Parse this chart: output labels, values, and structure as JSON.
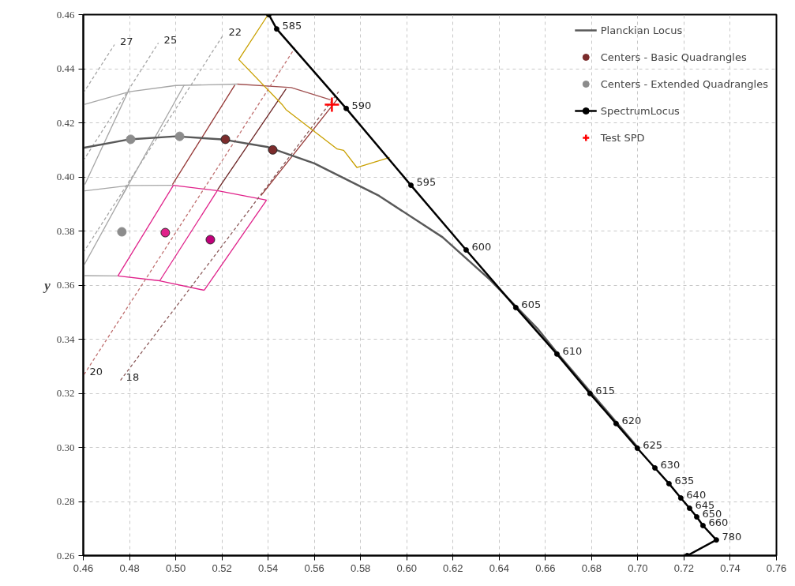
{
  "chart_data": {
    "type": "line",
    "ylabel": "y",
    "xlim": [
      0.46,
      0.76
    ],
    "ylim": [
      0.26,
      0.46
    ],
    "xticks": [
      {
        "value": 0.46,
        "label": "0.46"
      },
      {
        "value": 0.48,
        "label": "0.48"
      },
      {
        "value": 0.5,
        "label": "0.50"
      },
      {
        "value": 0.52,
        "label": "0.52"
      },
      {
        "value": 0.54,
        "label": "0.54"
      },
      {
        "value": 0.56,
        "label": "0.56"
      },
      {
        "value": 0.58,
        "label": "0.58"
      },
      {
        "value": 0.6,
        "label": "0.60"
      },
      {
        "value": 0.62,
        "label": "0.62"
      },
      {
        "value": 0.64,
        "label": "0.64"
      },
      {
        "value": 0.66,
        "label": "0.66"
      },
      {
        "value": 0.68,
        "label": "0.68"
      },
      {
        "value": 0.7,
        "label": "0.70"
      },
      {
        "value": 0.72,
        "label": "0.72"
      },
      {
        "value": 0.74,
        "label": "0.74"
      },
      {
        "value": 0.76,
        "label": "0.76"
      }
    ],
    "yticks": [
      {
        "value": 0.26,
        "label": "0.26"
      },
      {
        "value": 0.28,
        "label": "0.28"
      },
      {
        "value": 0.3,
        "label": "0.30"
      },
      {
        "value": 0.32,
        "label": "0.32"
      },
      {
        "value": 0.34,
        "label": "0.34"
      },
      {
        "value": 0.36,
        "label": "0.36"
      },
      {
        "value": 0.38,
        "label": "0.38"
      },
      {
        "value": 0.4,
        "label": "0.40"
      },
      {
        "value": 0.42,
        "label": "0.42"
      },
      {
        "value": 0.44,
        "label": "0.44"
      },
      {
        "value": 0.46,
        "label": "0.46"
      }
    ],
    "grid": true,
    "legend": "top right",
    "series": [
      {
        "type": "line",
        "color": "#a6a6a6",
        "x": [
          0.46,
          0.48,
          0.5,
          0.5266
        ],
        "values": [
          0.4267,
          0.4315,
          0.4338,
          0.4343
        ]
      },
      {
        "type": "line",
        "color": "#a05050",
        "x": [
          0.5266,
          0.55,
          0.567
        ],
        "values": [
          0.4343,
          0.433,
          0.4285
        ]
      },
      {
        "type": "line",
        "color": "#a6a6a6",
        "x": [
          0.46,
          0.48,
          0.499
        ],
        "values": [
          0.3948,
          0.3968,
          0.3969
        ]
      },
      {
        "type": "line",
        "color": "#e0218a",
        "x": [
          0.499,
          0.518,
          0.5393
        ],
        "values": [
          0.3969,
          0.3949,
          0.3914
        ]
      },
      {
        "type": "line",
        "color": "#a6a6a6",
        "x": [
          0.46,
          0.475
        ],
        "values": [
          0.3635,
          0.3634
        ]
      },
      {
        "type": "line",
        "color": "#e0218a",
        "x": [
          0.475,
          0.4931,
          0.5123
        ],
        "values": [
          0.3634,
          0.3616,
          0.3581
        ]
      },
      {
        "type": "line",
        "color": "#e0218a",
        "x": [
          0.475,
          0.499
        ],
        "values": [
          0.3634,
          0.3969
        ]
      },
      {
        "type": "line",
        "color": "#e0218a",
        "x": [
          0.4931,
          0.518
        ],
        "values": [
          0.3616,
          0.3949
        ]
      },
      {
        "type": "line",
        "color": "#e0218a",
        "x": [
          0.5123,
          0.5393
        ],
        "values": [
          0.3581,
          0.3914
        ]
      },
      {
        "type": "line",
        "color": "#a6a6a6",
        "x": [
          0.4607,
          0.4798
        ],
        "values": [
          0.3972,
          0.4323
        ]
      },
      {
        "type": "line",
        "color": "#a6a6a6",
        "x": [
          0.4764,
          0.5037
        ],
        "values": [
          0.3923,
          0.434
        ]
      },
      {
        "type": "line",
        "color": "#a6a6a6",
        "x": [
          0.46,
          0.4795
        ],
        "values": [
          0.3669,
          0.3972
        ]
      },
      {
        "type": "line",
        "color": "#953735",
        "x": [
          0.4986,
          0.5256
        ],
        "values": [
          0.3972,
          0.434
        ]
      },
      {
        "type": "line",
        "color": "#6b2424",
        "x": [
          0.5181,
          0.5478
        ],
        "values": [
          0.3952,
          0.4326
        ]
      },
      {
        "type": "line",
        "color": "#953735",
        "x": [
          0.5369,
          0.57
        ],
        "values": [
          0.3931,
          0.4288
        ]
      },
      {
        "type": "line",
        "color": "#a6a6a6",
        "line_style": "dashed",
        "x": [
          0.46,
          0.4735
        ],
        "values": [
          0.431,
          0.4489
        ]
      },
      {
        "type": "line",
        "color": "#a6a6a6",
        "line_style": "dashed",
        "x": [
          0.46,
          0.4925
        ],
        "values": [
          0.406,
          0.4495
        ]
      },
      {
        "type": "line",
        "color": "#a6a6a6",
        "line_style": "dashed",
        "x": [
          0.46,
          0.5205
        ],
        "values": [
          0.372,
          0.4524
        ]
      },
      {
        "type": "line",
        "color": "#c07070",
        "line_style": "dashed",
        "x": [
          0.4603,
          0.5516
        ],
        "values": [
          0.3269,
          0.4477
        ]
      },
      {
        "type": "line",
        "color": "#8b5a5a",
        "line_style": "dashed",
        "x": [
          0.4761,
          0.5705
        ],
        "values": [
          0.3248,
          0.4315
        ]
      },
      {
        "type": "line",
        "color": "#c9a000",
        "x": [
          0.54,
          0.5273,
          0.546,
          0.5477,
          0.5699,
          0.5727,
          0.5784,
          0.5926
        ],
        "values": [
          0.46,
          0.4434,
          0.4268,
          0.4249,
          0.4103,
          0.4098,
          0.4035,
          0.4072
        ]
      },
      {
        "type": "line",
        "name": "Planckian Locus",
        "color": "#595959",
        "x": [
          0.46,
          0.48,
          0.5,
          0.52,
          0.54,
          0.56,
          0.588,
          0.6155,
          0.636,
          0.6565,
          0.665,
          0.68,
          0.7
        ],
        "values": [
          0.4107,
          0.4139,
          0.415,
          0.4139,
          0.411,
          0.405,
          0.393,
          0.3777,
          0.362,
          0.344,
          0.335,
          0.32,
          0.3
        ]
      },
      {
        "type": "scatter",
        "name": "Centers - Basic Quadrangles",
        "color": "#7b2c2c",
        "colors": [
          "#7b2c2c",
          "#7b2c2c",
          "#e0218a",
          "#c0007a"
        ],
        "marker": "circle",
        "x": [
          0.5215,
          0.542,
          0.4955,
          0.515
        ],
        "values": [
          0.4139,
          0.41,
          0.3794,
          0.3768
        ]
      },
      {
        "type": "scatter",
        "name": "Centers - Extended Quadrangles",
        "color": "#8c8c8c",
        "marker": "circle",
        "x": [
          0.4805,
          0.5017,
          0.4767
        ],
        "values": [
          0.4139,
          0.415,
          0.3797
        ]
      },
      {
        "type": "line",
        "name": "SpectrumLocus",
        "color": "#000000",
        "marker": "circle",
        "x": [
          0.5403,
          0.5437,
          0.5738,
          0.6018,
          0.6257,
          0.6472,
          0.665,
          0.6793,
          0.6906,
          0.6998,
          0.7074,
          0.7135,
          0.7186,
          0.7224,
          0.7255,
          0.7282,
          0.734,
          0.7214
        ],
        "values": [
          0.46,
          0.4547,
          0.4253,
          0.3969,
          0.373,
          0.3517,
          0.3345,
          0.3199,
          0.3088,
          0.2997,
          0.2924,
          0.2866,
          0.2813,
          0.2775,
          0.2743,
          0.2711,
          0.2658,
          0.26
        ]
      },
      {
        "type": "scatter",
        "name": "Test SPD",
        "color": "#ff0000",
        "marker": "cross",
        "x": [
          0.5676
        ],
        "values": [
          0.4267
        ]
      }
    ],
    "annotations": [
      {
        "text": "27",
        "x": 0.4735,
        "y": 0.4489
      },
      {
        "text": "25",
        "x": 0.4925,
        "y": 0.4495
      },
      {
        "text": "22",
        "x": 0.5205,
        "y": 0.4524
      },
      {
        "text": "20",
        "x": 0.4603,
        "y": 0.3269
      },
      {
        "text": "18",
        "x": 0.4761,
        "y": 0.3248
      },
      {
        "text": "585",
        "x": 0.5437,
        "y": 0.4547
      },
      {
        "text": "590",
        "x": 0.5738,
        "y": 0.4253
      },
      {
        "text": "595",
        "x": 0.6018,
        "y": 0.3969
      },
      {
        "text": "600",
        "x": 0.6257,
        "y": 0.373
      },
      {
        "text": "605",
        "x": 0.6472,
        "y": 0.3517
      },
      {
        "text": "610",
        "x": 0.665,
        "y": 0.3345
      },
      {
        "text": "615",
        "x": 0.6793,
        "y": 0.3199
      },
      {
        "text": "620",
        "x": 0.6906,
        "y": 0.3088
      },
      {
        "text": "625",
        "x": 0.6998,
        "y": 0.2997
      },
      {
        "text": "630",
        "x": 0.7074,
        "y": 0.2924
      },
      {
        "text": "635",
        "x": 0.7135,
        "y": 0.2866
      },
      {
        "text": "640",
        "x": 0.7186,
        "y": 0.2813
      },
      {
        "text": "645",
        "x": 0.7224,
        "y": 0.2775
      },
      {
        "text": "650",
        "x": 0.7255,
        "y": 0.2743
      },
      {
        "text": "660",
        "x": 0.7282,
        "y": 0.2711
      },
      {
        "text": "780",
        "x": 0.734,
        "y": 0.2658
      }
    ]
  }
}
